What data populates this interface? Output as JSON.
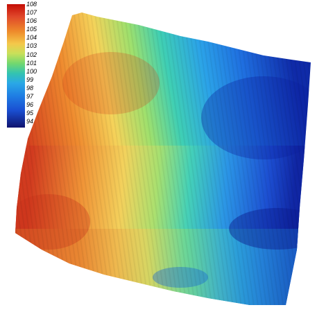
{
  "legend": {
    "labels": [
      "108",
      "107",
      "106",
      "105",
      "104",
      "103",
      "102",
      "101",
      "100",
      "99",
      "98",
      "97",
      "96",
      "95",
      "94"
    ]
  }
}
